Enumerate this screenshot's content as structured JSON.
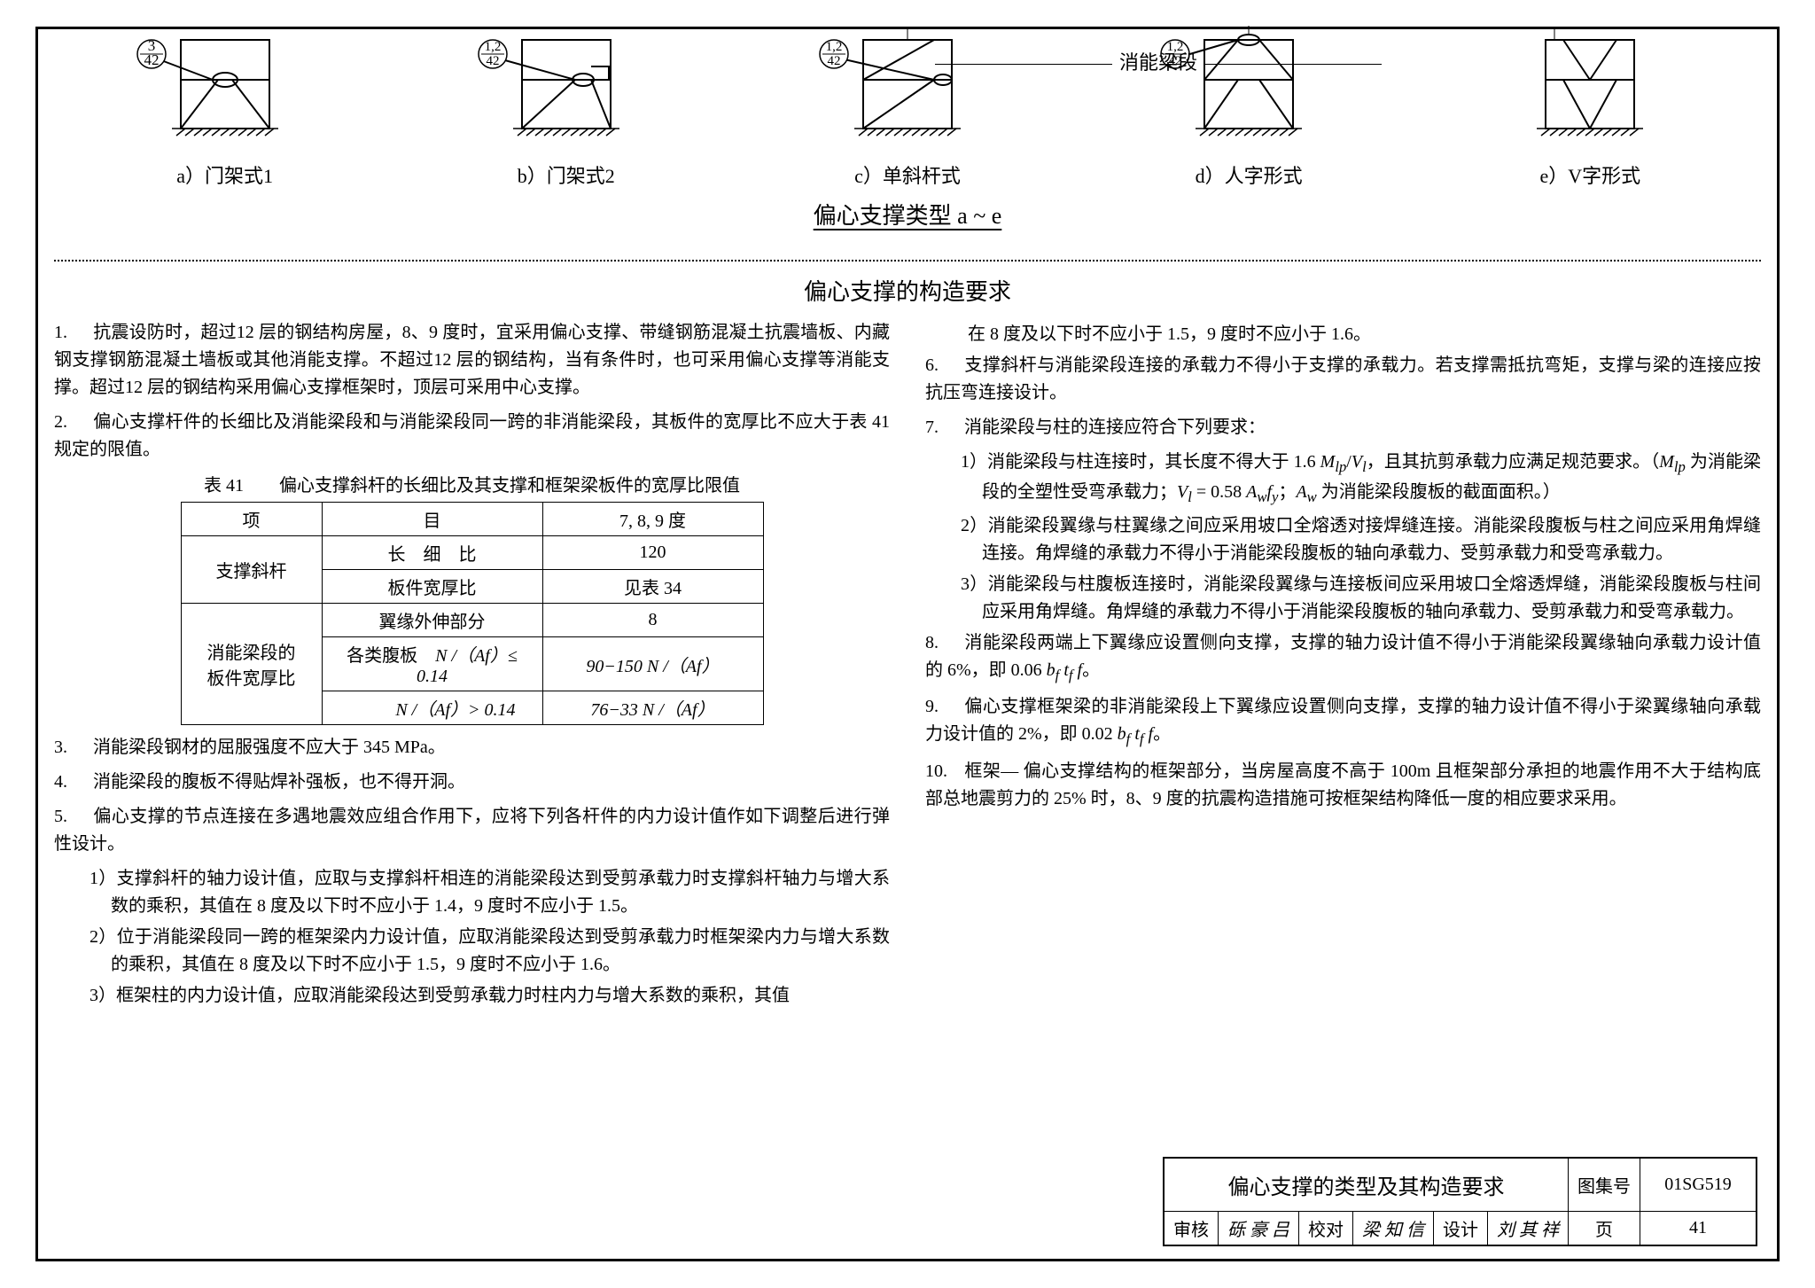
{
  "top": {
    "label": "消能梁段",
    "title": "偏心支撑类型 a ~ e",
    "refs": {
      "a": "3/42",
      "b": "1,2/42",
      "c": "1,2/42",
      "d": "1,2/42"
    },
    "caps": {
      "a": "a）门架式1",
      "b": "b）门架式2",
      "c": "c）单斜杆式",
      "d": "d）人字形式",
      "e": "e）V字形式"
    }
  },
  "sectionTitle": "偏心支撑的构造要求",
  "left": {
    "items": [
      "抗震设防时，超过12 层的钢结构房屋，8、9 度时，宜采用偏心支撑、带缝钢筋混凝土抗震墙板、内藏钢支撑钢筋混凝土墙板或其他消能支撑。不超过12 层的钢结构，当有条件时，也可采用偏心支撑等消能支撑。超过12 层的钢结构采用偏心支撑框架时，顶层可采用中心支撑。",
      "偏心支撑杆件的长细比及消能梁段和与消能梁段同一跨的非消能梁段，其板件的宽厚比不应大于表 41 规定的限值。"
    ],
    "tcap": "表 41　　偏心支撑斜杆的长细比及其支撑和框架梁板件的宽厚比限值",
    "table": {
      "h1": "项",
      "h2": "目",
      "h3": "7, 8, 9 度",
      "r1c1": "支撑斜杆",
      "r1c2": "长　细　比",
      "r1c3": "120",
      "r2c2": "板件宽厚比",
      "r2c3": "见表 34",
      "r3c1": "消能梁段的\n板件宽厚比",
      "r3c2": "翼缘外伸部分",
      "r3c3": "8",
      "r4c2a": "各类腹板",
      "r4c2b": "N /（Af）≤ 0.14",
      "r4c3": "90−150 N /（Af）",
      "r5c2": "N /（Af）> 0.14",
      "r5c3": "76−33 N /（Af）"
    },
    "items2": [
      "消能梁段钢材的屈服强度不应大于 345 MPa。",
      "消能梁段的腹板不得贴焊补强板，也不得开洞。",
      "偏心支撑的节点连接在多遇地震效应组合作用下，应将下列各杆件的内力设计值作如下调整后进行弹性设计。"
    ],
    "subs": [
      "1）支撑斜杆的轴力设计值，应取与支撑斜杆相连的消能梁段达到受剪承载力时支撑斜杆轴力与增大系数的乘积，其值在 8 度及以下时不应小于 1.4，9 度时不应小于 1.5。",
      "2）位于消能梁段同一跨的框架梁内力设计值，应取消能梁段达到受剪承载力时框架梁内力与增大系数的乘积，其值在 8 度及以下时不应小于 1.5，9 度时不应小于 1.6。",
      "3）框架柱的内力设计值，应取消能梁段达到受剪承载力时柱内力与增大系数的乘积，其值"
    ]
  },
  "right": {
    "cont": "在 8 度及以下时不应小于 1.5，9 度时不应小于 1.6。",
    "items": [
      "支撑斜杆与消能梁段连接的承载力不得小于支撑的承载力。若支撑需抵抗弯矩，支撑与梁的连接应按抗压弯连接设计。",
      "消能梁段与柱的连接应符合下列要求："
    ],
    "subs7": [
      [
        "1）消能梁段与柱连接时，其长度不得大于 1.6 ",
        "M",
        "lp",
        "/",
        "V",
        "l",
        "，且其抗剪承载力应满足规范要求。（",
        "M",
        "lp",
        " 为消能梁段的全塑性受弯承载力；",
        "V",
        "l",
        " = 0.58 ",
        "A",
        "w",
        "f",
        "y",
        "；",
        "A",
        "w",
        " 为消能梁段腹板的截面面积。）"
      ],
      "2）消能梁段翼缘与柱翼缘之间应采用坡口全熔透对接焊缝连接。消能梁段腹板与柱之间应采用角焊缝连接。角焊缝的承载力不得小于消能梁段腹板的轴向承载力、受剪承载力和受弯承载力。",
      "3）消能梁段与柱腹板连接时，消能梁段翼缘与连接板间应采用坡口全熔透焊缝，消能梁段腹板与柱间应采用角焊缝。角焊缝的承载力不得小于消能梁段腹板的轴向承载力、受剪承载力和受弯承载力。"
    ],
    "items2": [
      [
        "消能梁段两端上下翼缘应设置侧向支撑，支撑的轴力设计值不得小于消能梁段翼缘轴向承载力设计值的 6%，即 0.06 ",
        "b",
        "f",
        " t",
        "f",
        " f",
        "。"
      ],
      [
        "偏心支撑框架梁的非消能梁段上下翼缘应设置侧向支撑，支撑的轴力设计值不得小于梁翼缘轴向承载力设计值的 2%，即 0.02 ",
        "b",
        "f",
        " t",
        "f",
        " f",
        "。"
      ],
      "框架— 偏心支撑结构的框架部分，当房屋高度不高于 100m 且框架部分承担的地震作用不大于结构底部总地震剪力的 25% 时，8、9 度的抗震构造措施可按框架结构降低一度的相应要求采用。"
    ]
  },
  "tb": {
    "title": "偏心支撑的类型及其构造要求",
    "k1": "图集号",
    "v1": "01SG519",
    "r2": {
      "a": "审核",
      "b": "砾 豪 吕",
      "c": "校对",
      "d": "梁 知 信",
      "e": "设计",
      "f": "刘 其 祥",
      "g": "页",
      "h": "41"
    }
  }
}
